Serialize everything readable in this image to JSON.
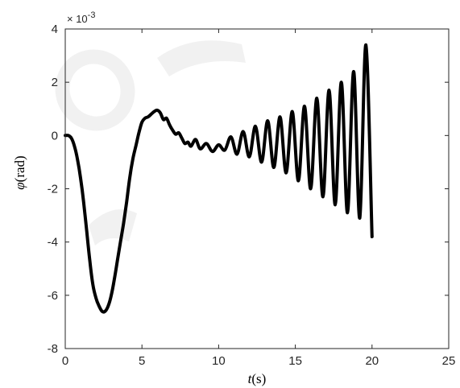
{
  "chart_data": {
    "type": "line",
    "title": "",
    "xlabel_symbol": "t",
    "xlabel_unit": "(s)",
    "ylabel_symbol": "φ",
    "ylabel_unit": "(rad)",
    "y_exponent_prefix": "× 10",
    "y_exponent_power": "-3",
    "xlim": [
      0,
      25
    ],
    "ylim": [
      -8,
      4
    ],
    "xticks": [
      0,
      5,
      10,
      15,
      20,
      25
    ],
    "yticks": [
      -8,
      -6,
      -4,
      -2,
      0,
      2,
      4
    ],
    "xtick_labels": [
      "0",
      "5",
      "10",
      "15",
      "20",
      "25"
    ],
    "ytick_labels": [
      "-8",
      "-6",
      "-4",
      "-2",
      "0",
      "2",
      "4"
    ],
    "grid": false,
    "series": [
      {
        "color": "#000000",
        "x": [
          0,
          0.2,
          0.4,
          0.6,
          0.8,
          1.0,
          1.2,
          1.4,
          1.6,
          1.8,
          2.0,
          2.2,
          2.4,
          2.6,
          2.8,
          3.0,
          3.2,
          3.4,
          3.6,
          3.8,
          4.0,
          4.2,
          4.4,
          4.6,
          4.8,
          5.0,
          5.2,
          5.4,
          5.6,
          5.8,
          6.0,
          6.2,
          6.4,
          6.6,
          6.8,
          7.0,
          7.2,
          7.4,
          7.6,
          7.8,
          8.0,
          8.2,
          8.5,
          8.8,
          9.2,
          9.6,
          10.0,
          10.4,
          10.8,
          11.2,
          11.6,
          12.0,
          12.4,
          12.8,
          13.2,
          13.6,
          14.0,
          14.4,
          14.8,
          15.2,
          15.6,
          16.0,
          16.4,
          16.8,
          17.2,
          17.6,
          18.0,
          18.4,
          18.8,
          19.2,
          19.6,
          20.0
        ],
        "y": [
          0,
          0,
          -0.1,
          -0.4,
          -0.9,
          -1.6,
          -2.5,
          -3.6,
          -4.7,
          -5.6,
          -6.1,
          -6.4,
          -6.6,
          -6.6,
          -6.4,
          -6.0,
          -5.4,
          -4.7,
          -4.0,
          -3.3,
          -2.5,
          -1.6,
          -0.9,
          -0.4,
          0.1,
          0.5,
          0.65,
          0.7,
          0.8,
          0.9,
          0.95,
          0.85,
          0.6,
          0.65,
          0.4,
          0.2,
          0.05,
          0.1,
          -0.1,
          -0.3,
          -0.25,
          -0.4,
          -0.15,
          -0.5,
          -0.3,
          -0.6,
          -0.35,
          -0.55,
          -0.05,
          -0.7,
          0.15,
          -0.8,
          0.35,
          -1.0,
          0.55,
          -1.2,
          0.7,
          -1.4,
          0.9,
          -1.7,
          1.1,
          -2.0,
          1.4,
          -2.3,
          1.7,
          -2.6,
          2.0,
          -2.9,
          2.4,
          -3.1,
          3.4,
          -3.8
        ]
      }
    ]
  }
}
